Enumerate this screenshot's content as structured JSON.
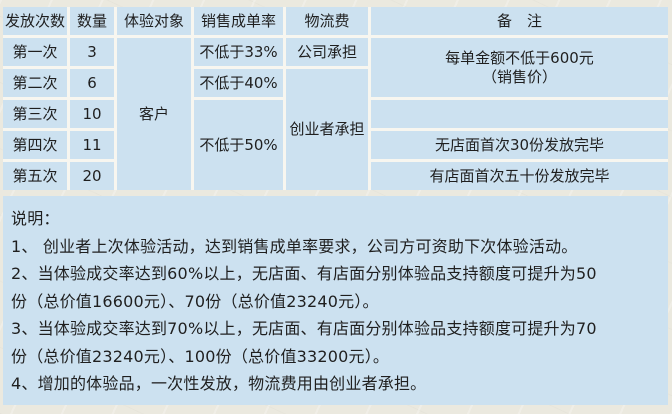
{
  "colors": {
    "paper": "#ebe9df",
    "cell_blue": "#cce1f0",
    "grid_line": "#f7f6f0",
    "text": "#1f1f1f"
  },
  "table": {
    "headers": {
      "round": "发放次数",
      "quantity": "数量",
      "target": "体验对象",
      "rate": "销售成单率",
      "logistics": "物流费",
      "remark": "备　注"
    },
    "rounds": [
      "第一次",
      "第二次",
      "第三次",
      "第四次",
      "第五次"
    ],
    "quantities": [
      "3",
      "6",
      "10",
      "11",
      "20"
    ],
    "target_merged": "客户",
    "rates": {
      "r1": "不低于33%",
      "r2": "不低于40%",
      "r345": "不低于50%"
    },
    "logistics": {
      "r1": "公司承担",
      "r2345": "创业者承担"
    },
    "remarks": {
      "r12_line1": "每单金额不低于600元",
      "r12_line2": "（销售价）",
      "r3": "",
      "r4": "无店面首次30份发放完毕",
      "r5": "有店面首次五十份发放完毕"
    }
  },
  "notes": {
    "title": "说明：",
    "lines": [
      "1、 创业者上次体验活动，达到销售成单率要求，公司方可资助下次体验活动。",
      "2、当体验成交率达到60%以上，无店面、有店面分别体验品支持额度可提升为50",
      "份（总价值16600元）、70份（总价值23240元）。",
      "3、当体验成交率达到70%以上，无店面、有店面分别体验品支持额度可提升为70",
      "份（总价值23240元）、100份（总价值33200元）。",
      "4、增加的体验品，一次性发放，物流费用由创业者承担。"
    ]
  }
}
